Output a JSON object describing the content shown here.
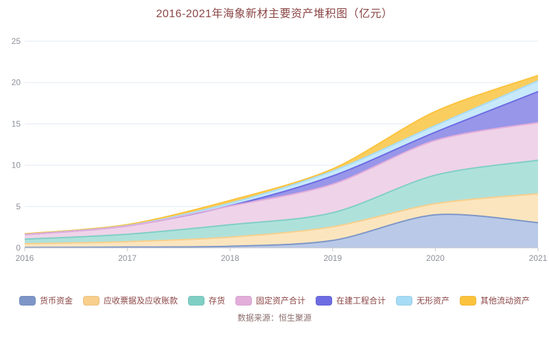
{
  "title": {
    "text": "2016-2021年海象新材主要资产堆积图（亿元）",
    "color": "#8B4545"
  },
  "source": {
    "text": "数据来源：恒生聚源",
    "color": "#8D6E6E"
  },
  "axis": {
    "tick_label_color": "#8C9099",
    "grid_color": "#E3E8F2",
    "axis_line_color": "#C6C8CE"
  },
  "legend": {
    "text_color": "#8B4545",
    "position": "bottom"
  },
  "chart_data": {
    "type": "area",
    "stacked": true,
    "smooth": true,
    "unit": "亿元",
    "title": "2016-2021年海象新材主要资产堆积图（亿元）",
    "x": [
      "2016",
      "2017",
      "2018",
      "2019",
      "2020",
      "2021"
    ],
    "ylim": [
      0,
      25
    ],
    "y_ticks": [
      0,
      5,
      10,
      15,
      20,
      25
    ],
    "grid": true,
    "legend_position": "bottom",
    "series": [
      {
        "name": "货币资金",
        "fill": "#B9C9E7",
        "line": "#7D96C8",
        "values": [
          0.05,
          0.1,
          0.2,
          0.9,
          4.0,
          3.05
        ]
      },
      {
        "name": "应收票据及应收账款",
        "fill": "#FBE5BE",
        "line": "#F8CF8C",
        "values": [
          0.45,
          0.65,
          1.1,
          1.65,
          1.35,
          3.5
        ]
      },
      {
        "name": "存货",
        "fill": "#AFE1DB",
        "line": "#7FCFC5",
        "values": [
          0.55,
          0.9,
          1.5,
          1.7,
          3.45,
          4.05
        ]
      },
      {
        "name": "固定资产合计",
        "fill": "#EFD3E9",
        "line": "#E3AEDA",
        "values": [
          0.55,
          1.0,
          2.25,
          3.45,
          4.2,
          4.55
        ]
      },
      {
        "name": "在建工程合计",
        "fill": "#9896E9",
        "line": "#6E6CE2",
        "values": [
          0.0,
          0.0,
          0.05,
          1.0,
          1.0,
          3.75
        ]
      },
      {
        "name": "无形资产",
        "fill": "#C7E9FB",
        "line": "#A6DCF5",
        "values": [
          0.03,
          0.05,
          0.3,
          0.6,
          0.8,
          1.3
        ]
      },
      {
        "name": "其他流动资产",
        "fill": "#FACD5F",
        "line": "#FBC33D",
        "values": [
          0.07,
          0.12,
          0.33,
          0.25,
          1.7,
          0.65
        ]
      }
    ]
  }
}
